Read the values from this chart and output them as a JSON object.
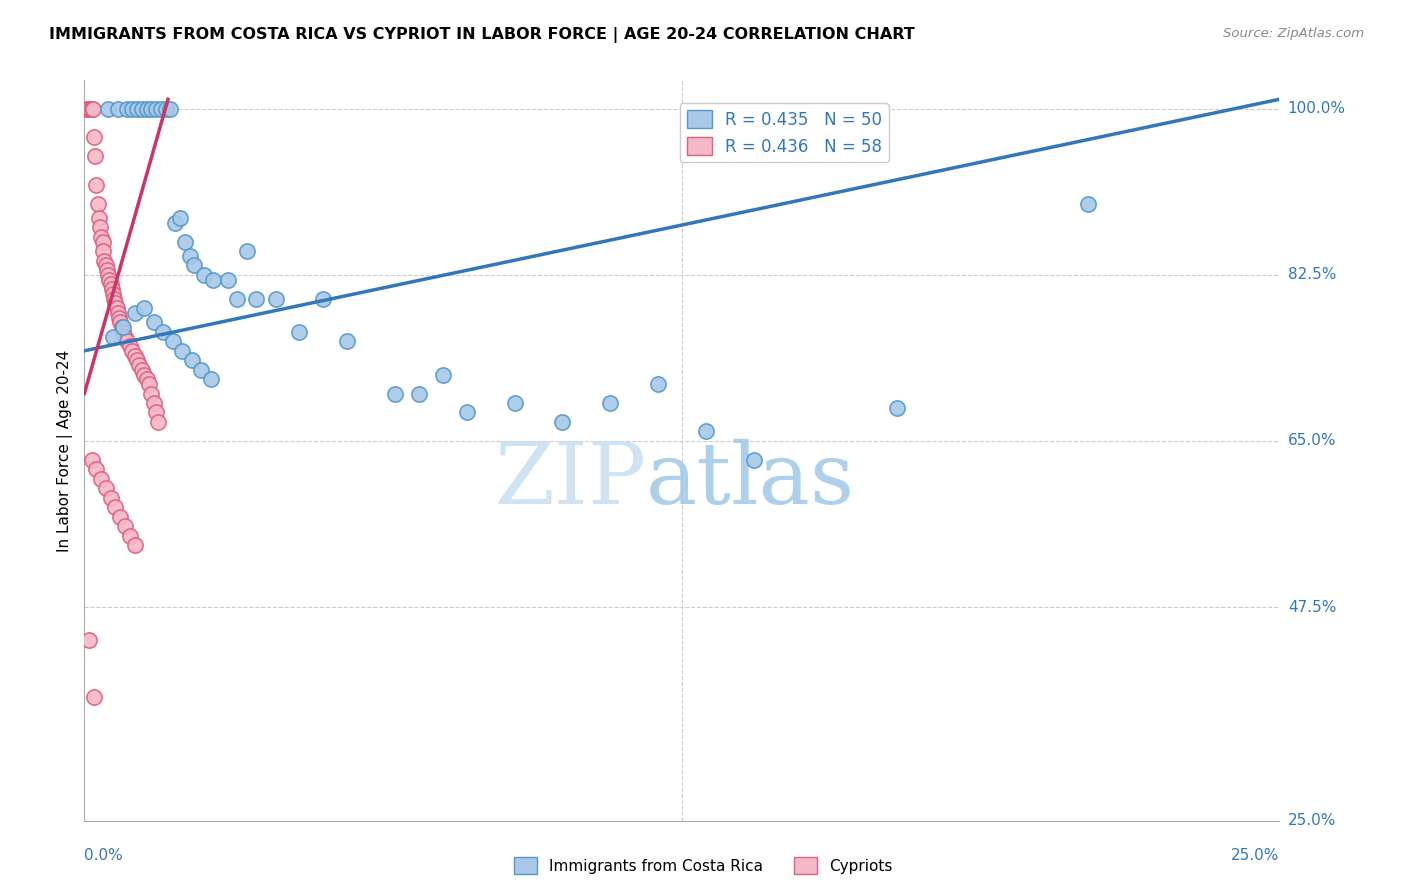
{
  "title": "IMMIGRANTS FROM COSTA RICA VS CYPRIOT IN LABOR FORCE | AGE 20-24 CORRELATION CHART",
  "source": "Source: ZipAtlas.com",
  "ylabel": "In Labor Force | Age 20-24",
  "xmin": 0.0,
  "xmax": 25.0,
  "ymin": 25.0,
  "ymax": 103.0,
  "blue_R": 0.435,
  "blue_N": 50,
  "pink_R": 0.436,
  "pink_N": 58,
  "blue_color": "#a8c8e8",
  "pink_color": "#f4b8c8",
  "blue_edge_color": "#5599cc",
  "pink_edge_color": "#e06080",
  "blue_line_color": "#3377bb",
  "pink_line_color": "#cc3366",
  "watermark_zip": "ZIP",
  "watermark_atlas": "atlas",
  "legend_label_blue": "Immigrants from Costa Rica",
  "legend_label_pink": "Cypriots",
  "ytick_vals": [
    100.0,
    82.5,
    65.0,
    47.5,
    25.0
  ],
  "ytick_labels": [
    "100.0%",
    "82.5%",
    "65.0%",
    "47.5%",
    "25.0%"
  ],
  "blue_x": [
    0.5,
    0.7,
    0.9,
    1.0,
    1.1,
    1.2,
    1.3,
    1.4,
    1.5,
    1.6,
    1.7,
    1.8,
    1.9,
    2.0,
    2.1,
    2.2,
    2.3,
    2.5,
    2.7,
    3.0,
    3.2,
    3.4,
    3.6,
    4.0,
    4.5,
    5.0,
    5.5,
    6.5,
    7.0,
    7.5,
    8.0,
    9.0,
    10.0,
    11.0,
    12.0,
    13.0,
    14.0,
    17.0,
    21.0,
    0.6,
    0.8,
    1.05,
    1.25,
    1.45,
    1.65,
    1.85,
    2.05,
    2.25,
    2.45,
    2.65
  ],
  "blue_y": [
    100.0,
    100.0,
    100.0,
    100.0,
    100.0,
    100.0,
    100.0,
    100.0,
    100.0,
    100.0,
    100.0,
    100.0,
    88.0,
    88.5,
    86.0,
    84.5,
    83.5,
    82.5,
    82.0,
    82.0,
    80.0,
    85.0,
    80.0,
    80.0,
    76.5,
    80.0,
    75.5,
    70.0,
    70.0,
    72.0,
    68.0,
    69.0,
    67.0,
    69.0,
    71.0,
    66.0,
    63.0,
    68.5,
    90.0,
    76.0,
    77.0,
    78.5,
    79.0,
    77.5,
    76.5,
    75.5,
    74.5,
    73.5,
    72.5,
    71.5
  ],
  "pink_x": [
    0.05,
    0.08,
    0.1,
    0.12,
    0.15,
    0.18,
    0.2,
    0.22,
    0.25,
    0.28,
    0.3,
    0.32,
    0.35,
    0.38,
    0.4,
    0.42,
    0.45,
    0.48,
    0.5,
    0.52,
    0.55,
    0.58,
    0.6,
    0.62,
    0.65,
    0.68,
    0.7,
    0.72,
    0.75,
    0.78,
    0.8,
    0.85,
    0.9,
    0.95,
    1.0,
    1.05,
    1.1,
    1.15,
    1.2,
    1.25,
    1.3,
    1.35,
    1.4,
    1.45,
    1.5,
    1.55,
    0.15,
    0.25,
    0.35,
    0.45,
    0.55,
    0.65,
    0.75,
    0.85,
    0.95,
    1.05,
    0.1,
    0.2
  ],
  "pink_y": [
    100.0,
    100.0,
    100.0,
    100.0,
    100.0,
    100.0,
    97.0,
    95.0,
    92.0,
    90.0,
    88.5,
    87.5,
    86.5,
    86.0,
    85.0,
    84.0,
    83.5,
    83.0,
    82.5,
    82.0,
    81.5,
    81.0,
    80.5,
    80.0,
    79.5,
    79.0,
    78.5,
    78.0,
    77.5,
    77.0,
    76.5,
    76.0,
    75.5,
    75.0,
    74.5,
    74.0,
    73.5,
    73.0,
    72.5,
    72.0,
    71.5,
    71.0,
    70.0,
    69.0,
    68.0,
    67.0,
    63.0,
    62.0,
    61.0,
    60.0,
    59.0,
    58.0,
    57.0,
    56.0,
    55.0,
    54.0,
    44.0,
    38.0
  ],
  "blue_trend_x0": 0.0,
  "blue_trend_y0": 74.5,
  "blue_trend_x1": 25.0,
  "blue_trend_y1": 101.0,
  "pink_trend_x0": 0.0,
  "pink_trend_y0": 70.0,
  "pink_trend_x1": 1.75,
  "pink_trend_y1": 101.0
}
